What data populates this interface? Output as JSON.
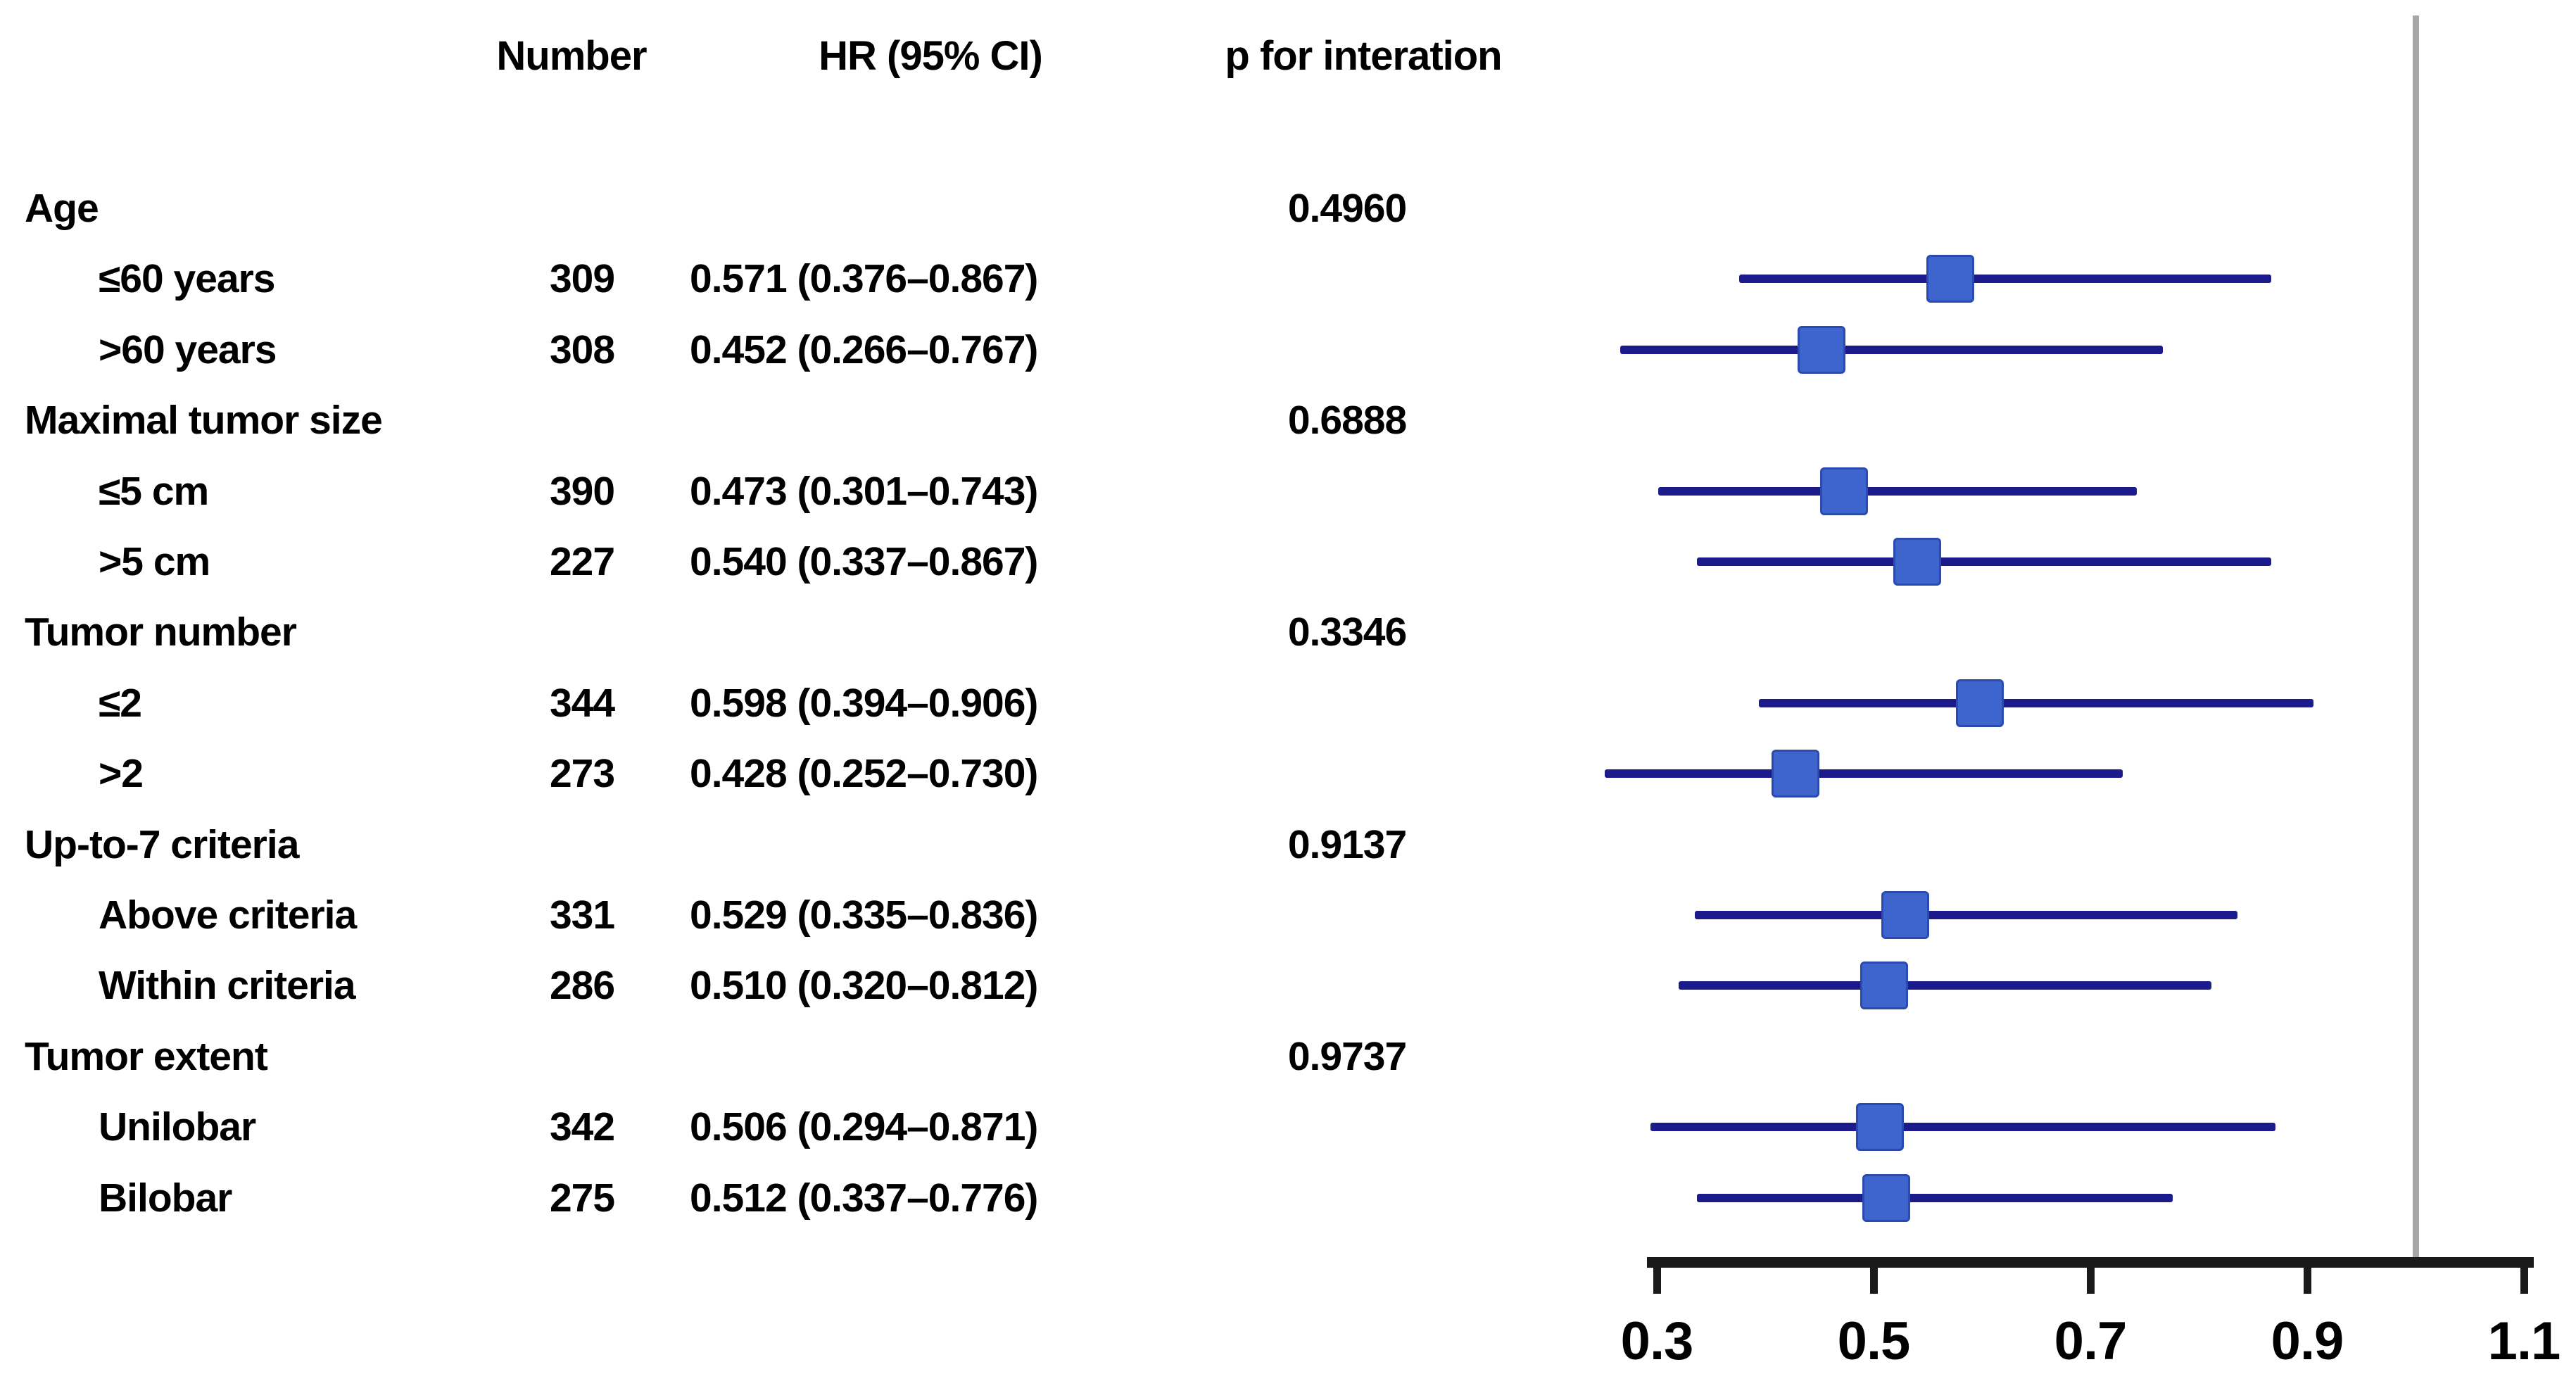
{
  "header": {
    "number": "Number",
    "hr": "HR (95% CI)",
    "p": "p for interation"
  },
  "colors": {
    "marker_fill": "#3E64CE",
    "marker_border": "#2A4AB0",
    "ci_line": "#1B1B8C",
    "axis": "#1A1A1A",
    "ref_line": "#A6A6A6",
    "text": "#000000",
    "background": "#FFFFFF"
  },
  "chart_data": {
    "type": "forest",
    "title": "",
    "columns": [
      "Number",
      "HR (95% CI)",
      "p for interation"
    ],
    "x_axis": {
      "scale": "linear",
      "range": [
        0.3,
        1.1
      ],
      "ticks": [
        0.3,
        0.5,
        0.7,
        0.9,
        1.1
      ],
      "tick_labels": [
        "0.3",
        "0.5",
        "0.7",
        "0.9",
        "1.1"
      ],
      "reference_line": 1.0
    },
    "legend": null,
    "rows": [
      {
        "kind": "group",
        "label": "Age",
        "p": "0.4960"
      },
      {
        "kind": "item",
        "label": "≤60 years",
        "number": "309",
        "hr_text": "0.571 (0.376–0.867)",
        "hr": 0.571,
        "ci_low": 0.376,
        "ci_high": 0.867
      },
      {
        "kind": "item",
        "label": ">60 years",
        "number": "308",
        "hr_text": "0.452 (0.266–0.767)",
        "hr": 0.452,
        "ci_low": 0.266,
        "ci_high": 0.767
      },
      {
        "kind": "group",
        "label": "Maximal tumor size",
        "p": "0.6888"
      },
      {
        "kind": "item",
        "label": "≤5 cm",
        "number": "390",
        "hr_text": "0.473 (0.301–0.743)",
        "hr": 0.473,
        "ci_low": 0.301,
        "ci_high": 0.743
      },
      {
        "kind": "item",
        "label": ">5 cm",
        "number": "227",
        "hr_text": "0.540 (0.337–0.867)",
        "hr": 0.54,
        "ci_low": 0.337,
        "ci_high": 0.867
      },
      {
        "kind": "group",
        "label": "Tumor number",
        "p": "0.3346"
      },
      {
        "kind": "item",
        "label": "≤2",
        "number": "344",
        "hr_text": "0.598 (0.394–0.906)",
        "hr": 0.598,
        "ci_low": 0.394,
        "ci_high": 0.906
      },
      {
        "kind": "item",
        "label": ">2",
        "number": "273",
        "hr_text": "0.428 (0.252–0.730)",
        "hr": 0.428,
        "ci_low": 0.252,
        "ci_high": 0.73
      },
      {
        "kind": "group",
        "label": "Up-to-7 criteria",
        "p": "0.9137"
      },
      {
        "kind": "item",
        "label": "Above criteria",
        "number": "331",
        "hr_text": "0.529 (0.335–0.836)",
        "hr": 0.529,
        "ci_low": 0.335,
        "ci_high": 0.836
      },
      {
        "kind": "item",
        "label": "Within criteria",
        "number": "286",
        "hr_text": "0.510 (0.320–0.812)",
        "hr": 0.51,
        "ci_low": 0.32,
        "ci_high": 0.812
      },
      {
        "kind": "group",
        "label": "Tumor extent",
        "p": "0.9737"
      },
      {
        "kind": "item",
        "label": "Unilobar",
        "number": "342",
        "hr_text": "0.506 (0.294–0.871)",
        "hr": 0.506,
        "ci_low": 0.294,
        "ci_high": 0.871
      },
      {
        "kind": "item",
        "label": "Bilobar",
        "number": "275",
        "hr_text": "0.512 (0.337–0.776)",
        "hr": 0.512,
        "ci_low": 0.337,
        "ci_high": 0.776
      }
    ]
  }
}
